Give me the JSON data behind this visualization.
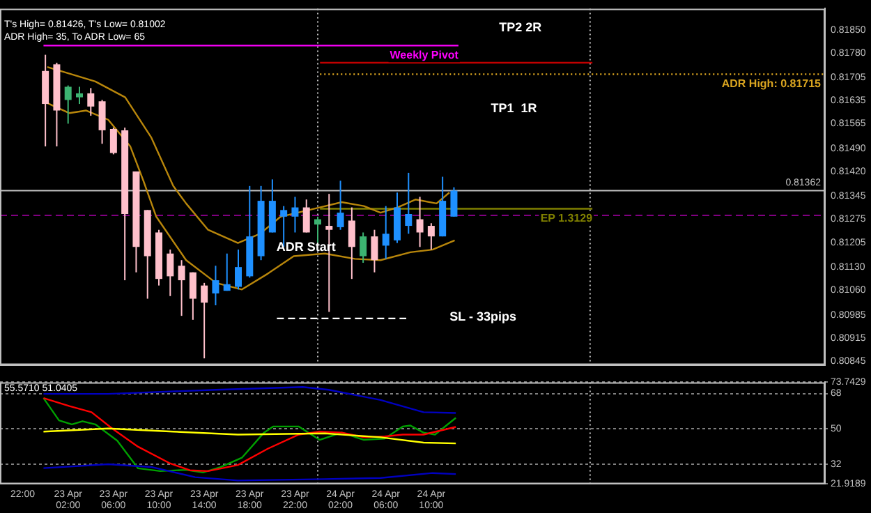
{
  "chart_data": [
    {
      "type": "candlestick",
      "x": [
        "--04-23T00:00",
        "--04-23T01:00",
        "--04-23T02:00",
        "--04-23T03:00",
        "--04-23T04:00",
        "--04-23T05:00",
        "--04-23T06:00",
        "--04-23T07:00",
        "--04-23T08:00",
        "--04-23T09:00",
        "--04-23T10:00",
        "--04-23T11:00",
        "--04-23T12:00",
        "--04-23T13:00",
        "--04-23T14:00",
        "--04-23T15:00",
        "--04-23T16:00",
        "--04-23T17:00",
        "--04-23T18:00",
        "--04-23T19:00",
        "--04-23T20:00",
        "--04-23T21:00",
        "--04-23T22:00",
        "--04-23T23:00",
        "--04-24T00:00",
        "--04-24T01:00",
        "--04-24T02:00",
        "--04-24T03:00",
        "--04-24T04:00",
        "--04-24T05:00",
        "--04-24T06:00",
        "--04-24T07:00",
        "--04-24T08:00",
        "--04-24T09:00",
        "--04-24T10:00",
        "--04-24T11:00",
        "--04-24T12:00"
      ],
      "ohlc": [
        [
          0.81725,
          0.81774,
          0.81496,
          0.81625
        ],
        [
          0.81745,
          0.8175,
          0.81496,
          0.81605
        ],
        [
          0.81637,
          0.81681,
          0.81565,
          0.81677
        ],
        [
          0.81645,
          0.81677,
          0.81625,
          0.81657
        ],
        [
          0.81657,
          0.81673,
          0.81589,
          0.81617
        ],
        [
          0.81633,
          0.81637,
          0.81504,
          0.81545
        ],
        [
          0.81549,
          0.81553,
          0.81472,
          0.81476
        ],
        [
          0.81545,
          0.81553,
          0.8109,
          0.81291
        ],
        [
          0.8142,
          0.8142,
          0.81114,
          0.81191
        ],
        [
          0.81303,
          0.81303,
          0.81034,
          0.81163
        ],
        [
          0.81235,
          0.81243,
          0.81074,
          0.81094
        ],
        [
          0.81171,
          0.81183,
          0.81042,
          0.81102
        ],
        [
          0.81134,
          0.81151,
          0.80982,
          0.8109
        ],
        [
          0.81114,
          0.81114,
          0.8097,
          0.81034
        ],
        [
          0.81074,
          0.81082,
          0.80853,
          0.81022
        ],
        [
          0.8105,
          0.81134,
          0.81014,
          0.8109
        ],
        [
          0.81058,
          0.81171,
          0.81058,
          0.81078
        ],
        [
          0.8107,
          0.81183,
          0.81062,
          0.8113
        ],
        [
          0.81102,
          0.81376,
          0.81098,
          0.81223
        ],
        [
          0.81163,
          0.81376,
          0.81151,
          0.81331
        ],
        [
          0.81235,
          0.81396,
          0.81235,
          0.81331
        ],
        [
          0.81283,
          0.81315,
          0.81191,
          0.81303
        ],
        [
          0.81283,
          0.81343,
          0.81235,
          0.81311
        ],
        [
          0.81311,
          0.81335,
          0.81235,
          0.81235
        ],
        [
          0.81259,
          0.81283,
          0.81203,
          0.81275
        ],
        [
          0.81255,
          0.81352,
          0.80994,
          0.81243
        ],
        [
          0.81251,
          0.81392,
          0.81243,
          0.81295
        ],
        [
          0.81271,
          0.81311,
          0.81094,
          0.81191
        ],
        [
          0.81163,
          0.81235,
          0.81143,
          0.81223
        ],
        [
          0.81223,
          0.81243,
          0.81114,
          0.81151
        ],
        [
          0.81195,
          0.81315,
          0.81155,
          0.81231
        ],
        [
          0.81211,
          0.81356,
          0.81203,
          0.81311
        ],
        [
          0.81255,
          0.81416,
          0.81231,
          0.81291
        ],
        [
          0.81275,
          0.81343,
          0.81191,
          0.81235
        ],
        [
          0.81255,
          0.81263,
          0.81183,
          0.81223
        ],
        [
          0.81223,
          0.81404,
          0.81223,
          0.81331
        ],
        [
          0.81283,
          0.81372,
          0.81283,
          0.81362
        ]
      ],
      "colors": [
        "#ffc0cb",
        "#ffc0cb",
        "#3cb371",
        "#3cb371",
        "#ffc0cb",
        "#ffc0cb",
        "#ffc0cb",
        "#ffc0cb",
        "#ffc0cb",
        "#ffc0cb",
        "#ffc0cb",
        "#ffc0cb",
        "#ffc0cb",
        "#ffc0cb",
        "#ffc0cb",
        "#1e90ff",
        "#1e90ff",
        "#1e90ff",
        "#1e90ff",
        "#1e90ff",
        "#1e90ff",
        "#1e90ff",
        "#1e90ff",
        "#ffc0cb",
        "#3cb371",
        "#ffc0cb",
        "#1e90ff",
        "#ffc0cb",
        "#3cb371",
        "#ffc0cb",
        "#1e90ff",
        "#1e90ff",
        "#1e90ff",
        "#ffc0cb",
        "#ffc0cb",
        "#1e90ff",
        "#1e90ff"
      ],
      "series": [
        {
          "type": "line",
          "color": "#b8860b",
          "x": [
            "--04-23T00:10",
            "--04-23T02:07",
            "--04-23T04:24",
            "--04-23T07:02",
            "--04-23T09:19",
            "--04-23T11:16",
            "--04-23T12:24",
            "--04-23T14:20",
            "--04-23T16:58",
            "--04-23T18:55",
            "--04-23T20:44",
            "--04-24T00:10",
            "--04-24T02:07",
            "--04-24T04:04",
            "--04-24T05:32",
            "--04-24T07:02",
            "--04-24T08:38",
            "--04-24T10:28",
            "--04-24T11:36"
          ],
          "values": [
            0.81737,
            0.81717,
            0.81693,
            0.81645,
            0.81524,
            0.81376,
            0.81323,
            0.81243,
            0.81203,
            0.81231,
            0.81283,
            0.81311,
            0.81327,
            0.81315,
            0.81295,
            0.81311,
            0.81335,
            0.81323,
            0.81356
          ]
        },
        {
          "type": "line",
          "color": "#b8860b",
          "x": [
            "--04-22T23:50",
            "--04-23T02:07",
            "--04-23T03:36",
            "--04-23T05:32",
            "--04-23T07:29",
            "--04-23T08:38",
            "--04-23T09:46",
            "--04-23T12:24",
            "--04-23T15:02",
            "--04-23T17:19",
            "--04-23T19:36",
            "--04-23T21:53",
            "--04-24T00:38",
            "--04-24T03:16",
            "--04-24T05:32",
            "--04-24T08:10",
            "--04-24T10:07",
            "--04-24T12:04"
          ],
          "values": [
            0.81633,
            0.81597,
            0.81605,
            0.81577,
            0.81496,
            0.81392,
            0.81283,
            0.81151,
            0.81082,
            0.81062,
            0.8111,
            0.81163,
            0.81171,
            0.81155,
            0.81151,
            0.81175,
            0.81183,
            0.81211
          ]
        },
        {
          "type": "line",
          "name": "Weekly Pivot",
          "color": "#ff00ff",
          "x": [
            "--04-22T23:50",
            "--04-24T12:24"
          ],
          "values": [
            0.81802,
            0.81802
          ]
        },
        {
          "type": "line",
          "color": "#c00000",
          "x": [
            "--04-24T00:12",
            "--04-25T00:12"
          ],
          "values": [
            0.8175,
            0.8175
          ]
        },
        {
          "type": "line",
          "name": "ADR High: 0.81715",
          "color": "#daa520",
          "line_style": "dotted",
          "x": [
            "--04-24T00:12",
            "--04-25T20:42"
          ],
          "values": [
            0.81715,
            0.81715
          ]
        },
        {
          "type": "line",
          "name": "EP 1.3129",
          "color": "#808000",
          "x": [
            "--04-24T00:12",
            "--04-25T00:12"
          ],
          "values": [
            0.81307,
            0.81307
          ]
        },
        {
          "type": "line",
          "color": "#ffffff",
          "line_style": "dashed",
          "x": [
            "--04-23T20:24",
            "--04-24T07:48"
          ],
          "values": [
            0.80974,
            0.80974
          ]
        }
      ],
      "xlim": [
        "--04-22T20:00",
        "--04-25T20:42"
      ],
      "ylim": [
        0.80833,
        0.81914
      ],
      "yticks": [
        {
          "value": 0.8185,
          "label": "0.81850"
        },
        {
          "value": 0.8178,
          "label": "0.81780"
        },
        {
          "value": 0.81705,
          "label": "0.81705"
        },
        {
          "value": 0.81635,
          "label": "0.81635"
        },
        {
          "value": 0.81565,
          "label": "0.81565"
        },
        {
          "value": 0.8149,
          "label": "0.81490"
        },
        {
          "value": 0.8142,
          "label": "0.81420"
        },
        {
          "value": 0.81345,
          "label": "0.81345"
        },
        {
          "value": 0.81275,
          "label": "0.81275"
        },
        {
          "value": 0.81205,
          "label": "0.81205"
        },
        {
          "value": 0.8113,
          "label": "0.81130"
        },
        {
          "value": 0.8106,
          "label": "0.81060"
        },
        {
          "value": 0.80985,
          "label": "0.80985"
        },
        {
          "value": 0.80915,
          "label": "0.80915"
        },
        {
          "value": 0.80845,
          "label": "0.80845"
        }
      ],
      "tick_labels": "y",
      "ref_lines": [
        {
          "axis": "y",
          "value": 0.81362,
          "label": "0.81362",
          "color": "#c0c0c0"
        },
        {
          "axis": "y",
          "value": 0.81287,
          "color": "#800080",
          "line_style": "dashed"
        },
        {
          "axis": "x",
          "value": "--04-24T00:00",
          "color": "#c0c0c0",
          "line_style": "dotted"
        },
        {
          "axis": "x",
          "value": "--04-25T00:00",
          "color": "#c0c0c0",
          "line_style": "dotted"
        }
      ],
      "annotations": [
        "T's High= 0.81426, T's Low= 0.81002",
        "ADR High= 35, To ADR Low= 65",
        "TP2 2R",
        "TP1  1R",
        "SL - 33pips",
        "ADR Start"
      ]
    },
    {
      "type": "line",
      "series": [
        {
          "color": "#0000c0",
          "x": [
            "--04-22T23:50",
            "--04-23T05:32",
            "--04-23T15:02",
            "--04-23T22:41",
            "--04-24T00:58",
            "--04-24T05:32",
            "--04-24T09:19",
            "--04-24T12:10"
          ],
          "values": [
            67.8,
            67.8,
            69.9,
            71.3,
            69.9,
            64.7,
            58.5,
            58.1
          ]
        },
        {
          "color": "#0000c0",
          "x": [
            "--04-22T23:50",
            "--04-23T05:32",
            "--04-23T09:19",
            "--04-23T13:12",
            "--04-23T16:58",
            "--04-24T00:38",
            "--04-24T05:32",
            "--04-24T10:07",
            "--04-24T12:10"
          ],
          "values": [
            30.0,
            32.0,
            30.6,
            25.4,
            23.7,
            24.4,
            25.0,
            27.5,
            27.0
          ]
        },
        {
          "color": "#ffff00",
          "x": [
            "--04-22T23:50",
            "--04-23T05:32",
            "--04-23T11:16",
            "--04-23T16:58",
            "--04-24T00:38",
            "--04-24T05:32",
            "--04-24T09:19",
            "--04-24T12:10"
          ],
          "values": [
            48.6,
            50.2,
            48.6,
            47.1,
            47.7,
            45.7,
            43.0,
            42.6
          ]
        },
        {
          "color": "#ff0000",
          "x": [
            "--04-22T23:50",
            "--04-23T02:07",
            "--04-23T04:04",
            "--04-23T05:53",
            "--04-23T08:10",
            "--04-23T10:55",
            "--04-23T12:44",
            "--04-23T14:20",
            "--04-23T16:58",
            "--04-23T19:36",
            "--04-23T22:20",
            "--04-24T00:10",
            "--04-24T02:07",
            "--04-24T04:04",
            "--04-24T05:53",
            "--04-24T07:29",
            "--04-24T09:19",
            "--04-24T12:10"
          ],
          "values": [
            65.7,
            61.6,
            58.5,
            50.2,
            40.9,
            32.6,
            28.9,
            28.5,
            31.6,
            39.9,
            47.1,
            48.6,
            48.1,
            45.7,
            46.1,
            47.1,
            47.1,
            51.0
          ]
        },
        {
          "color": "#00a000",
          "x": [
            "--04-22T23:50",
            "--04-23T01:12",
            "--04-23T02:20",
            "--04-23T03:16",
            "--04-23T04:24",
            "--04-23T06:20",
            "--04-23T08:10",
            "--04-23T10:07",
            "--04-23T12:24",
            "--04-23T13:53",
            "--04-23T15:29",
            "--04-23T17:19",
            "--04-23T19:16",
            "--04-23T20:04",
            "--04-23T22:20",
            "--04-24T00:10",
            "--04-24T02:07",
            "--04-24T04:04",
            "--04-24T05:53",
            "--04-24T07:29",
            "--04-24T08:10",
            "--04-24T09:19",
            "--04-24T10:20",
            "--04-24T12:10"
          ],
          "values": [
            65.7,
            54.3,
            52.3,
            53.9,
            52.3,
            44.0,
            29.9,
            28.5,
            29.1,
            27.8,
            30.6,
            35.3,
            48.1,
            51.2,
            51.2,
            44.4,
            48.1,
            44.4,
            45.0,
            51.2,
            51.7,
            48.1,
            47.1,
            55.6
          ]
        }
      ],
      "xlim": [
        "--04-22T20:00",
        "--04-25T20:42"
      ],
      "xticks": [
        {
          "value": "--04-22T22:00",
          "label": "22:00"
        },
        {
          "value": "--04-23T02:00",
          "label": "23 Apr 02:00"
        },
        {
          "value": "--04-23T06:00",
          "label": "23 Apr 06:00"
        },
        {
          "value": "--04-23T10:00",
          "label": "23 Apr 10:00"
        },
        {
          "value": "--04-23T14:00",
          "label": "23 Apr 14:00"
        },
        {
          "value": "--04-23T18:00",
          "label": "23 Apr 18:00"
        },
        {
          "value": "--04-23T22:00",
          "label": "23 Apr 22:00"
        },
        {
          "value": "--04-24T02:00",
          "label": "24 Apr 02:00"
        },
        {
          "value": "--04-24T06:00",
          "label": "24 Apr 06:00"
        },
        {
          "value": "--04-24T10:00",
          "label": "24 Apr 10:00"
        }
      ],
      "ylim": [
        21.9189,
        73.7429
      ],
      "yticks": [
        73.7429,
        68,
        50,
        32,
        21.9189
      ],
      "grid": "y",
      "ref_lines": [
        {
          "axis": "x",
          "value": "--04-24T00:00",
          "color": "#c0c0c0",
          "line_style": "dotted"
        },
        {
          "axis": "x",
          "value": "--04-25T00:00",
          "color": "#c0c0c0",
          "line_style": "dotted"
        }
      ],
      "annotations": [
        "55.5710 51.0405"
      ]
    }
  ]
}
